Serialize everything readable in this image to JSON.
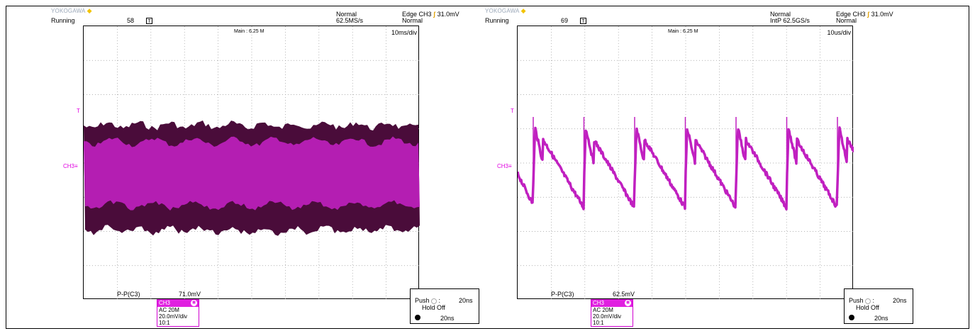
{
  "scopes": [
    {
      "brand": "YOKOGAWA",
      "status": "Running",
      "count": "58",
      "mode_top": "Normal",
      "rate": "62.5MS/s",
      "trigger": "Edge CH3",
      "trigger_level": "31.0mV",
      "trigger_mode": "Normal",
      "main_label": "Main : 6.25 M",
      "timebase": "10ms/div",
      "measure_label": "P-P(C3)",
      "measure_value": "71.0mV",
      "channel": {
        "name": "CH3",
        "coupling": "AC 20M",
        "scale": "20.0mV/div",
        "probe": "10:1"
      },
      "hold": {
        "push": "Push",
        "colon": ":",
        "value": "20ns",
        "label": "Hold Off",
        "value2": "20ns"
      },
      "trigger_marker": "T",
      "ch_marker": "CH3"
    },
    {
      "brand": "YOKOGAWA",
      "status": "Running",
      "count": "69",
      "mode_top": "Normal",
      "rate": "IntP 62.5GS/s",
      "trigger": "Edge CH3",
      "trigger_level": "31.0mV",
      "trigger_mode": "Normal",
      "main_label": "Main : 6.25 M",
      "timebase": "10us/div",
      "measure_label": "P-P(C3)",
      "measure_value": "62.5mV",
      "channel": {
        "name": "CH3",
        "coupling": "AC 20M",
        "scale": "20.0mV/div",
        "probe": "10:1"
      },
      "hold": {
        "push": "Push",
        "colon": ":",
        "value": "20ns",
        "label": "Hold Off",
        "value2": "20ns"
      },
      "trigger_marker": "T",
      "ch_marker": "CH3"
    }
  ],
  "colors": {
    "trace": "#c020c0",
    "trace_dark": "#4a0c3a",
    "grid_dot": "#9a9a9a"
  }
}
